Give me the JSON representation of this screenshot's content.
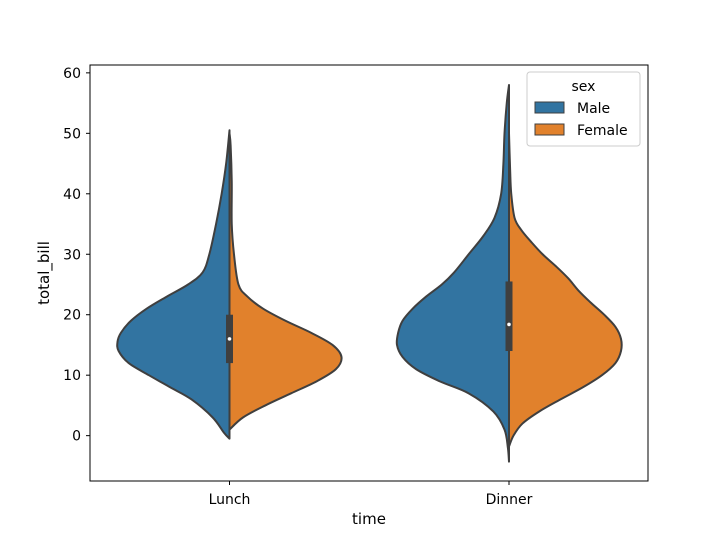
{
  "chart_data": {
    "type": "violin",
    "split": true,
    "title": "",
    "xlabel": "time",
    "ylabel": "total_bill",
    "categories": [
      "Lunch",
      "Dinner"
    ],
    "ylim": [
      -7.5,
      61.3
    ],
    "yticks": [
      0,
      10,
      20,
      30,
      40,
      50,
      60
    ],
    "grid": false,
    "legend": {
      "title": "sex",
      "placement": "top-right",
      "entries": [
        {
          "label": "Male",
          "color": "#3274a1"
        },
        {
          "label": "Female",
          "color": "#e1812c"
        }
      ]
    },
    "series": [
      {
        "name": "Male",
        "color": "#3274a1",
        "side": "left",
        "violins": [
          {
            "category": "Lunch",
            "density": [
              [
                -0.5,
                0.0
              ],
              [
                0.5,
                0.05
              ],
              [
                3,
                0.15
              ],
              [
                6,
                0.34
              ],
              [
                8,
                0.53
              ],
              [
                10,
                0.72
              ],
              [
                12,
                0.9
              ],
              [
                14,
                0.99
              ],
              [
                15.5,
                1.0
              ],
              [
                17,
                0.97
              ],
              [
                19,
                0.88
              ],
              [
                21,
                0.74
              ],
              [
                23,
                0.56
              ],
              [
                25,
                0.37
              ],
              [
                27,
                0.24
              ],
              [
                30,
                0.18
              ],
              [
                35,
                0.12
              ],
              [
                40,
                0.07
              ],
              [
                45,
                0.03
              ],
              [
                50.5,
                0.0
              ]
            ]
          },
          {
            "category": "Dinner",
            "density": [
              [
                -4.3,
                0.0
              ],
              [
                -2,
                0.01
              ],
              [
                1,
                0.04
              ],
              [
                4,
                0.14
              ],
              [
                7,
                0.36
              ],
              [
                9,
                0.62
              ],
              [
                11,
                0.83
              ],
              [
                13,
                0.95
              ],
              [
                15,
                1.0
              ],
              [
                17,
                0.99
              ],
              [
                19,
                0.95
              ],
              [
                21,
                0.86
              ],
              [
                23,
                0.74
              ],
              [
                25,
                0.6
              ],
              [
                27,
                0.49
              ],
              [
                30,
                0.36
              ],
              [
                33,
                0.23
              ],
              [
                36,
                0.13
              ],
              [
                40,
                0.07
              ],
              [
                45,
                0.05
              ],
              [
                50,
                0.04
              ],
              [
                55,
                0.02
              ],
              [
                58,
                0.0
              ]
            ]
          }
        ]
      },
      {
        "name": "Female",
        "color": "#e1812c",
        "side": "right",
        "violins": [
          {
            "category": "Lunch",
            "density": [
              [
                1,
                0.0
              ],
              [
                3,
                0.12
              ],
              [
                5,
                0.32
              ],
              [
                7,
                0.55
              ],
              [
                9,
                0.78
              ],
              [
                11,
                0.95
              ],
              [
                13,
                1.0
              ],
              [
                15,
                0.92
              ],
              [
                17,
                0.73
              ],
              [
                19,
                0.5
              ],
              [
                21,
                0.3
              ],
              [
                23,
                0.16
              ],
              [
                25,
                0.08
              ],
              [
                30,
                0.04
              ],
              [
                35,
                0.02
              ],
              [
                42,
                0.02
              ],
              [
                48,
                0.01
              ],
              [
                50,
                0.0
              ]
            ]
          },
          {
            "category": "Dinner",
            "density": [
              [
                -1.8,
                0.0
              ],
              [
                0,
                0.04
              ],
              [
                2,
                0.12
              ],
              [
                4,
                0.27
              ],
              [
                6,
                0.46
              ],
              [
                8,
                0.66
              ],
              [
                10,
                0.83
              ],
              [
                12,
                0.95
              ],
              [
                14,
                1.0
              ],
              [
                16,
                1.0
              ],
              [
                18,
                0.95
              ],
              [
                20,
                0.85
              ],
              [
                22,
                0.73
              ],
              [
                24,
                0.62
              ],
              [
                26,
                0.53
              ],
              [
                28,
                0.42
              ],
              [
                30,
                0.3
              ],
              [
                32,
                0.2
              ],
              [
                34,
                0.11
              ],
              [
                36,
                0.05
              ],
              [
                40,
                0.02
              ],
              [
                44,
                0.01
              ],
              [
                50,
                0.0
              ]
            ]
          }
        ]
      }
    ],
    "box": [
      {
        "category": "Lunch",
        "q1": 12.0,
        "median": 16.0,
        "q3": 20.0
      },
      {
        "category": "Dinner",
        "q1": 14.0,
        "median": 18.4,
        "q3": 25.5
      }
    ]
  }
}
